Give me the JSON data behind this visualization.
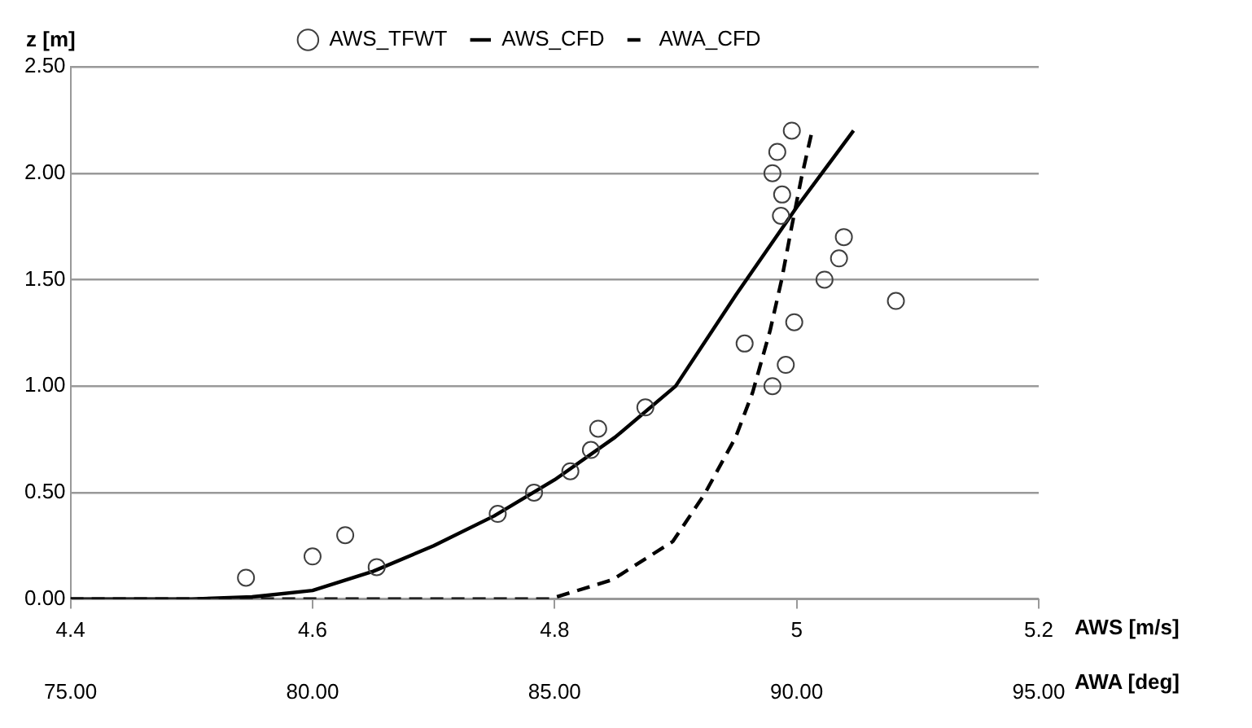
{
  "chart_data": {
    "type": "scatter",
    "ylabel": "z [m]",
    "xlabel": "AWS [m/s]",
    "x2label": "AWA [deg]",
    "xlim": [
      4.4,
      5.2
    ],
    "xticks": [
      4.4,
      4.6,
      4.8,
      5,
      5.2
    ],
    "x2lim": [
      75,
      95
    ],
    "x2ticks": [
      {
        "value": 75,
        "label": "75.00"
      },
      {
        "value": 80,
        "label": "80.00"
      },
      {
        "value": 85,
        "label": "85.00"
      },
      {
        "value": 90,
        "label": "90.00"
      },
      {
        "value": 95,
        "label": "95.00"
      }
    ],
    "ylim": [
      0,
      2.5
    ],
    "yticks": [
      {
        "value": 0,
        "label": "0.00"
      },
      {
        "value": 0.5,
        "label": "0.50"
      },
      {
        "value": 1,
        "label": "1.00"
      },
      {
        "value": 1.5,
        "label": "1.50"
      },
      {
        "value": 2,
        "label": "2.00"
      },
      {
        "value": 2.5,
        "label": "2.50"
      }
    ],
    "grid": "y",
    "legend": "top",
    "series": [
      {
        "name": "AWS_TFWT",
        "marker": "circle",
        "color": "#404040",
        "x": [
          4.545,
          4.6,
          4.627,
          4.653,
          4.753,
          4.783,
          4.813,
          4.83,
          4.836,
          4.875,
          4.98,
          4.991,
          4.957,
          4.998,
          5.082,
          5.023,
          5.035,
          5.039,
          4.987,
          4.988,
          4.98,
          4.984,
          4.996
        ],
        "values": [
          0.1,
          0.2,
          0.3,
          0.15,
          0.4,
          0.5,
          0.6,
          0.7,
          0.8,
          0.9,
          1.0,
          1.1,
          1.2,
          1.3,
          1.4,
          1.5,
          1.6,
          1.7,
          1.8,
          1.9,
          2.0,
          2.1,
          2.2
        ]
      },
      {
        "name": "AWS_CFD",
        "type": "line",
        "marker": "none",
        "line_style": "solid",
        "color": "#000000",
        "x": [
          4.4,
          4.5,
          4.55,
          4.6,
          4.65,
          4.7,
          4.75,
          4.8,
          4.85,
          4.9,
          4.95,
          5.0,
          5.047
        ],
        "values": [
          0,
          0,
          0.01,
          0.04,
          0.13,
          0.25,
          0.39,
          0.56,
          0.76,
          1.0,
          1.43,
          1.84,
          2.2
        ]
      },
      {
        "name": "AWA_CFD",
        "type": "line",
        "axis": "x2",
        "marker": "none",
        "line_style": "dashed",
        "color": "#000000",
        "x": [
          75,
          80,
          84.9,
          86.19,
          87.44,
          88.09,
          88.74,
          89.09,
          89.45,
          89.69,
          89.89,
          90.1,
          90.32
        ],
        "values": [
          0,
          0,
          0,
          0.09,
          0.27,
          0.49,
          0.76,
          0.97,
          1.26,
          1.5,
          1.74,
          1.98,
          2.2
        ]
      }
    ]
  }
}
